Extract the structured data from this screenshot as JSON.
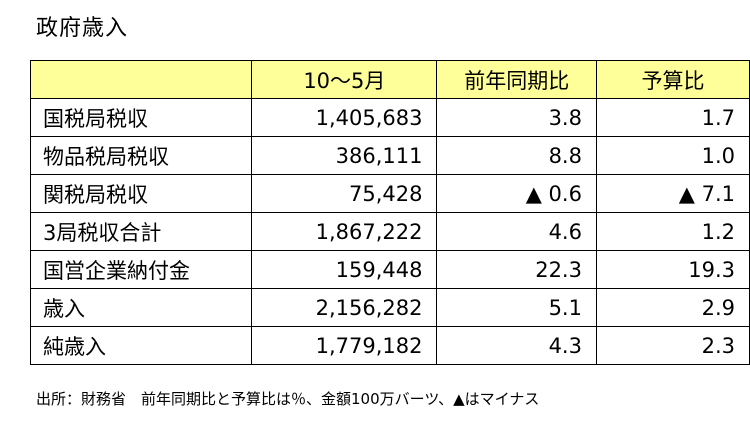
{
  "title": "政府歳入",
  "table": {
    "headers": [
      "",
      "10～5月",
      "前年同期比",
      "予算比"
    ],
    "rows": [
      {
        "label": "国税局税収",
        "amount": "1,405,683",
        "yoy": "3.8",
        "budget": "1.7"
      },
      {
        "label": "物品税局税収",
        "amount": "386,111",
        "yoy": "8.8",
        "budget": "1.0"
      },
      {
        "label": "関税局税収",
        "amount": "75,428",
        "yoy": "▲ 0.6",
        "budget": "▲ 7.1"
      },
      {
        "label": "3局税収合計",
        "amount": "1,867,222",
        "yoy": "4.6",
        "budget": "1.2"
      },
      {
        "label": "国営企業納付金",
        "amount": "159,448",
        "yoy": "22.3",
        "budget": "19.3"
      },
      {
        "label": "歳入",
        "amount": "2,156,282",
        "yoy": "5.1",
        "budget": "2.9"
      },
      {
        "label": "純歳入",
        "amount": "1,779,182",
        "yoy": "4.3",
        "budget": "2.3"
      }
    ]
  },
  "source_note": "出所：財務省　前年同期比と予算比は％、金額100万バーツ、▲はマイナス",
  "colors": {
    "header_background": "#ffff99",
    "border": "#000000",
    "text": "#000000"
  }
}
